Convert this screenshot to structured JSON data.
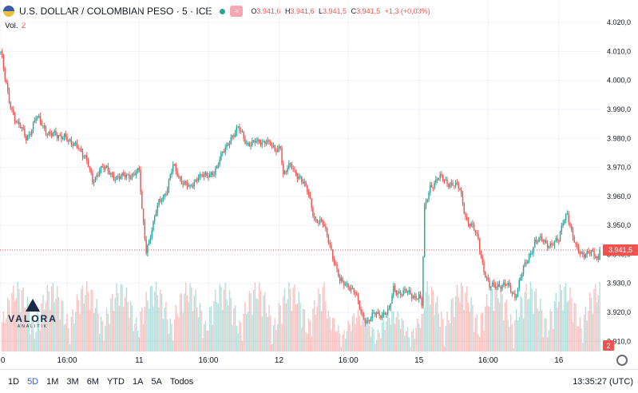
{
  "header": {
    "title": "U.S. DOLLAR / COLOMBIAN PESO · 5 · ICE",
    "badge": "≈",
    "ohlc": [
      {
        "label": "O",
        "value": "3.941,6"
      },
      {
        "label": "H",
        "value": "3.941,6"
      },
      {
        "label": "L",
        "value": "3.941,5"
      },
      {
        "label": "C",
        "value": "3.941,5"
      }
    ],
    "change": "+1,3 (+0,03%)",
    "icons": [
      "usd-cop-flag-icon",
      "market-status-dot-icon",
      "data-mode-badge-icon"
    ]
  },
  "volume_label": {
    "label": "Vol.",
    "value": "2"
  },
  "price_tag": "3.941,5",
  "volume_tag": "2",
  "logo": {
    "name": "VALORA",
    "sub": "ANALITIK"
  },
  "footer": {
    "ranges": [
      "1D",
      "5D",
      "1M",
      "3M",
      "6M",
      "YTD",
      "1A",
      "5A",
      "Todos"
    ],
    "active": "5D",
    "clock": "13:35:27 (UTC)"
  },
  "colors": {
    "up": "#26a69a",
    "down": "#ef5350",
    "grid": "#f0f3fa"
  },
  "chart_data": {
    "type": "candlestick",
    "title": "U.S. DOLLAR / COLOMBIAN PESO · 5 · ICE",
    "y_ticks": [
      "4.020,0",
      "4.010,0",
      "4.000,0",
      "3.990,0",
      "3.980,0",
      "3.970,0",
      "3.960,0",
      "3.950,0",
      "3.940,0",
      "3.930,0",
      "3.920,0",
      "3.910,0"
    ],
    "y_tick_values": [
      4020,
      4010,
      4000,
      3990,
      3980,
      3970,
      3960,
      3950,
      3940,
      3930,
      3920,
      3910
    ],
    "ylim": [
      3906.5,
      4025
    ],
    "x_ticks": [
      "0",
      "16:00",
      "11",
      "16:00",
      "12",
      "16:00",
      "15",
      "16:00",
      "16"
    ],
    "x_tick_index": [
      0,
      47,
      98,
      147,
      197,
      246,
      296,
      345,
      395
    ],
    "n_bars": 425,
    "last_price": 3941.5,
    "price_path": [
      [
        0,
        4010
      ],
      [
        3,
        4000
      ],
      [
        6,
        3993
      ],
      [
        12,
        3985
      ],
      [
        18,
        3980
      ],
      [
        25,
        3987
      ],
      [
        32,
        3983
      ],
      [
        40,
        3980
      ],
      [
        45,
        3982
      ],
      [
        50,
        3977
      ],
      [
        55,
        3978
      ],
      [
        60,
        3973
      ],
      [
        65,
        3965
      ],
      [
        70,
        3970
      ],
      [
        78,
        3968
      ],
      [
        85,
        3966
      ],
      [
        92,
        3968
      ],
      [
        98,
        3968
      ],
      [
        100,
        3955
      ],
      [
        103,
        3942
      ],
      [
        108,
        3950
      ],
      [
        112,
        3958
      ],
      [
        118,
        3963
      ],
      [
        122,
        3970
      ],
      [
        128,
        3966
      ],
      [
        134,
        3962
      ],
      [
        140,
        3968
      ],
      [
        146,
        3966
      ],
      [
        152,
        3970
      ],
      [
        158,
        3975
      ],
      [
        163,
        3981
      ],
      [
        168,
        3983
      ],
      [
        174,
        3979
      ],
      [
        182,
        3978
      ],
      [
        188,
        3980
      ],
      [
        194,
        3975
      ],
      [
        198,
        3978
      ],
      [
        200,
        3968
      ],
      [
        205,
        3970
      ],
      [
        212,
        3967
      ],
      [
        218,
        3960
      ],
      [
        222,
        3953
      ],
      [
        228,
        3950
      ],
      [
        233,
        3944
      ],
      [
        240,
        3930
      ],
      [
        246,
        3930
      ],
      [
        250,
        3927
      ],
      [
        255,
        3920
      ],
      [
        260,
        3917
      ],
      [
        265,
        3919
      ],
      [
        270,
        3920
      ],
      [
        275,
        3920
      ],
      [
        278,
        3928
      ],
      [
        284,
        3927
      ],
      [
        290,
        3926
      ],
      [
        296,
        3926
      ],
      [
        298,
        3922
      ],
      [
        300,
        3955
      ],
      [
        304,
        3964
      ],
      [
        310,
        3966
      ],
      [
        318,
        3965
      ],
      [
        325,
        3962
      ],
      [
        330,
        3952
      ],
      [
        335,
        3948
      ],
      [
        338,
        3945
      ],
      [
        342,
        3935
      ],
      [
        346,
        3928
      ],
      [
        352,
        3930
      ],
      [
        358,
        3929
      ],
      [
        364,
        3926
      ],
      [
        368,
        3932
      ],
      [
        373,
        3938
      ],
      [
        378,
        3945
      ],
      [
        385,
        3944
      ],
      [
        390,
        3944
      ],
      [
        395,
        3944
      ],
      [
        398,
        3952
      ],
      [
        401,
        3955
      ],
      [
        404,
        3947
      ],
      [
        407,
        3942
      ],
      [
        408,
        3941.5
      ]
    ],
    "volume_range": [
      0,
      40
    ],
    "last_volume": 2
  }
}
